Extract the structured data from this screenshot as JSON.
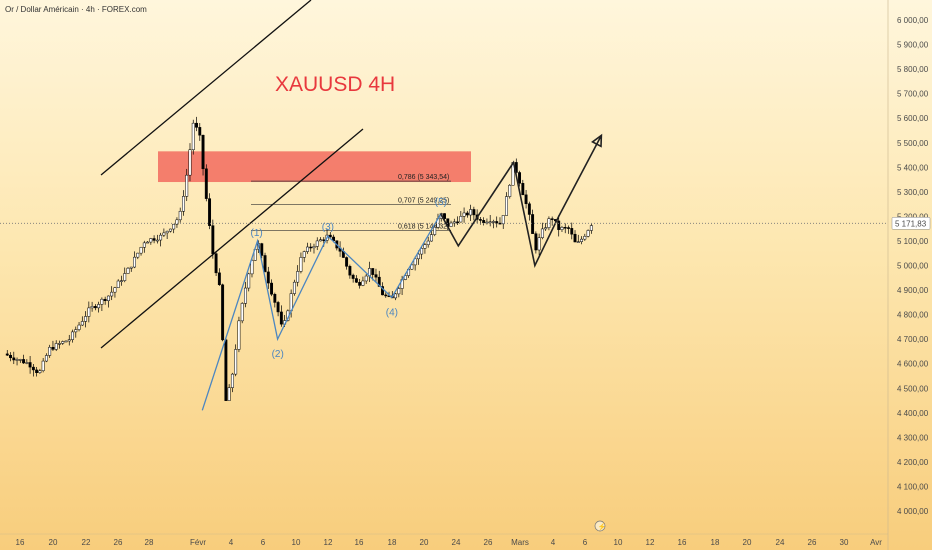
{
  "header": {
    "symbol_line": "Or / Dollar Américain · 4h · FOREX.com"
  },
  "colors": {
    "candle": "#000000",
    "channel": "#111111",
    "wave": "#4c86c0",
    "zone": "#f26b5e",
    "title": "#e8383d",
    "price_label_bg": "#ffffff",
    "forecast": "#222222"
  },
  "chart_data": {
    "type": "candlestick",
    "title": "XAUUSD 4H",
    "y_axis": {
      "ticks": [
        "6 000,00",
        "5 900,00",
        "5 800,00",
        "5 700,00",
        "5 600,00",
        "5 500,00",
        "5 400,00",
        "5 300,00",
        "5 200,00",
        "5 100,00",
        "5 000,00",
        "4 900,00",
        "4 800,00",
        "4 700,00",
        "4 600,00",
        "4 500,00",
        "4 400,00",
        "4 300,00",
        "4 200,00",
        "4 100,00",
        "4 000,00"
      ],
      "ylim": [
        3970,
        6040
      ]
    },
    "x_axis": {
      "ticks": [
        "16",
        "20",
        "22",
        "26",
        "28",
        "Févr",
        "4",
        "6",
        "10",
        "12",
        "16",
        "18",
        "20",
        "24",
        "26",
        "Mars",
        "4",
        "6",
        "10",
        "12",
        "16",
        "18",
        "20",
        "24",
        "26",
        "30",
        "Avr"
      ]
    },
    "last_price": {
      "value": 5171.83,
      "label": "5 171,83"
    },
    "price_path": [
      [
        0,
        4640
      ],
      [
        0.5,
        4620
      ],
      [
        1,
        4600
      ],
      [
        1.4,
        4560
      ],
      [
        1.8,
        4660
      ],
      [
        2.6,
        4700
      ],
      [
        3.4,
        4820
      ],
      [
        4.2,
        4880
      ],
      [
        5,
        4990
      ],
      [
        5.6,
        5100
      ],
      [
        6.3,
        5120
      ],
      [
        7,
        5200
      ],
      [
        7.3,
        5380
      ],
      [
        7.55,
        5590
      ],
      [
        7.8,
        5520
      ],
      [
        8.05,
        5280
      ],
      [
        8.3,
        5060
      ],
      [
        8.6,
        4900
      ],
      [
        8.85,
        4430
      ],
      [
        9.1,
        4560
      ],
      [
        9.35,
        4760
      ],
      [
        9.6,
        4900
      ],
      [
        9.8,
        5000
      ],
      [
        10.1,
        5100
      ],
      [
        10.4,
        4980
      ],
      [
        10.7,
        4880
      ],
      [
        10.9,
        4820
      ],
      [
        11.1,
        4730
      ],
      [
        11.3,
        4820
      ],
      [
        11.6,
        4950
      ],
      [
        11.9,
        5050
      ],
      [
        12.4,
        5090
      ],
      [
        12.9,
        5120
      ],
      [
        13.4,
        5060
      ],
      [
        13.8,
        4960
      ],
      [
        14.1,
        4920
      ],
      [
        14.6,
        4990
      ],
      [
        15.1,
        4880
      ],
      [
        15.45,
        4860
      ],
      [
        15.8,
        4930
      ],
      [
        16.1,
        4990
      ],
      [
        16.6,
        5060
      ],
      [
        17,
        5120
      ],
      [
        17.4,
        5210
      ],
      [
        17.7,
        5160
      ],
      [
        18.1,
        5190
      ],
      [
        18.6,
        5220
      ],
      [
        19,
        5180
      ],
      [
        19.4,
        5190
      ],
      [
        19.8,
        5170
      ],
      [
        20.1,
        5310
      ],
      [
        20.3,
        5420
      ],
      [
        20.55,
        5340
      ],
      [
        20.8,
        5250
      ],
      [
        21,
        5170
      ],
      [
        21.15,
        5060
      ],
      [
        21.4,
        5130
      ],
      [
        21.8,
        5200
      ],
      [
        22.1,
        5150
      ],
      [
        22.5,
        5150
      ],
      [
        22.8,
        5080
      ],
      [
        23.1,
        5120
      ],
      [
        23.4,
        5170
      ]
    ],
    "annotations": {
      "waves": [
        {
          "label": "(1)",
          "x": 10.1,
          "y": 5100
        },
        {
          "label": "(2)",
          "x": 10.9,
          "y": 4700
        },
        {
          "label": "(3)",
          "x": 12.9,
          "y": 5120
        },
        {
          "label": "(4)",
          "x": 15.45,
          "y": 4870
        },
        {
          "label": "(5)",
          "x": 17.4,
          "y": 5210
        }
      ],
      "fib_levels": [
        {
          "label": "0,786 (5 343,54)",
          "value": 5343.54
        },
        {
          "label": "0,707 (5 249,25)",
          "value": 5249.25
        },
        {
          "label": "0,618 (5 143,32)",
          "value": 5143.32
        }
      ],
      "resistance_zone": {
        "low": 5340,
        "high": 5465,
        "x_start": 6.8,
        "x_end": 19.6
      },
      "channel": {
        "upper": [
          [
            4.3,
            5350
          ],
          [
            13,
            6040
          ]
        ],
        "lower": [
          [
            4.3,
            4670
          ],
          [
            14.3,
            5580
          ]
        ]
      },
      "forecast": [
        [
          17.4,
          5210
        ],
        [
          18.1,
          5080
        ],
        [
          20.3,
          5420
        ],
        [
          21.15,
          5000
        ],
        [
          22.1,
          5200
        ],
        [
          23.8,
          5530
        ]
      ]
    }
  }
}
